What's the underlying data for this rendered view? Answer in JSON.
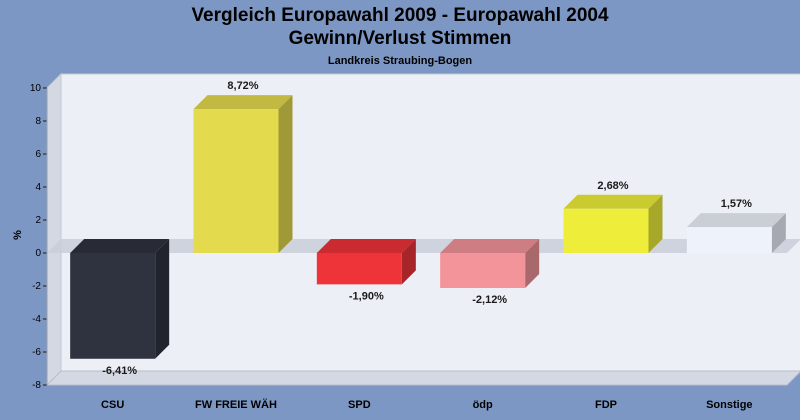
{
  "chart_data": {
    "type": "bar",
    "title": "Vergleich Europawahl 2009 - Europawahl 2004",
    "subtitle": "Gewinn/Verlust Stimmen",
    "subsubtitle": "Landkreis Straubing-Bogen",
    "ylabel": "%",
    "xlabel": "",
    "ylim": [
      -8,
      10
    ],
    "yticks": [
      10,
      8,
      6,
      4,
      2,
      0,
      -2,
      -4,
      -6,
      -8
    ],
    "categories": [
      "CSU",
      "FW FREIE WÄH",
      "SPD",
      "ödp",
      "FDP",
      "Sonstige"
    ],
    "values": [
      -6.41,
      8.72,
      -1.9,
      -2.12,
      2.68,
      1.57
    ],
    "value_labels": [
      "-6,41%",
      "8,72%",
      "-1,90%",
      "-2,12%",
      "2,68%",
      "1,57%"
    ],
    "colors": [
      "#2f3340",
      "#e3da4e",
      "#ee3339",
      "#f29499",
      "#eeee3a",
      "#eef2fb"
    ],
    "grid": false,
    "legend": "none"
  }
}
